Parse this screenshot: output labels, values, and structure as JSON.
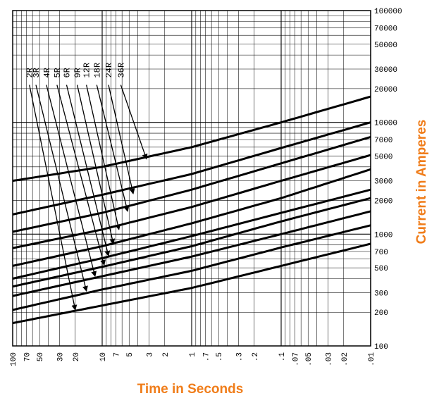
{
  "chart_data": {
    "type": "line",
    "xlabel": "Time in Seconds",
    "ylabel": "Current in Amperes",
    "x_scale": "log",
    "x_reversed": true,
    "y_scale": "log",
    "xlim": [
      100,
      0.01
    ],
    "ylim": [
      100,
      100000
    ],
    "x_tick_labels": [
      "100",
      "70",
      "50",
      "30",
      "20",
      "10",
      "7",
      "5",
      "3",
      "2",
      "1",
      ".7",
      ".5",
      ".3",
      ".2",
      ".1",
      ".07",
      ".05",
      ".03",
      ".02",
      ".01"
    ],
    "x_ticks": [
      100,
      70,
      50,
      30,
      20,
      10,
      7,
      5,
      3,
      2,
      1,
      0.7,
      0.5,
      0.3,
      0.2,
      0.1,
      0.07,
      0.05,
      0.03,
      0.02,
      0.01
    ],
    "y_tick_labels": [
      "100000",
      "70000",
      "50000",
      "30000",
      "20000",
      "10000",
      "7000",
      "5000",
      "3000",
      "2000",
      "1000",
      "700",
      "500",
      "300",
      "200",
      "100"
    ],
    "y_ticks": [
      100000,
      70000,
      50000,
      30000,
      20000,
      10000,
      7000,
      5000,
      3000,
      2000,
      1000,
      700,
      500,
      300,
      200,
      100
    ],
    "grid": true,
    "series": [
      {
        "name": "2R",
        "points": [
          [
            100,
            160
          ],
          [
            10,
            230
          ],
          [
            1,
            330
          ],
          [
            0.1,
            520
          ],
          [
            0.01,
            820
          ]
        ],
        "label_xy": [
          65,
          25000
        ],
        "arrow_xy": [
          20,
          210
        ]
      },
      {
        "name": "3R",
        "points": [
          [
            100,
            210
          ],
          [
            10,
            320
          ],
          [
            1,
            470
          ],
          [
            0.1,
            760
          ],
          [
            0.01,
            1200
          ]
        ],
        "label_xy": [
          55,
          25000
        ],
        "arrow_xy": [
          15,
          310
        ]
      },
      {
        "name": "4R",
        "points": [
          [
            100,
            280
          ],
          [
            10,
            420
          ],
          [
            1,
            630
          ],
          [
            0.1,
            1000
          ],
          [
            0.01,
            1600
          ]
        ],
        "label_xy": [
          42,
          25000
        ],
        "arrow_xy": [
          12,
          420
        ]
      },
      {
        "name": "5R",
        "points": [
          [
            100,
            340
          ],
          [
            10,
            510
          ],
          [
            1,
            780
          ],
          [
            0.1,
            1300
          ],
          [
            0.01,
            2100
          ]
        ],
        "label_xy": [
          32,
          25000
        ],
        "arrow_xy": [
          9.5,
          530
        ]
      },
      {
        "name": "6R",
        "points": [
          [
            100,
            400
          ],
          [
            10,
            610
          ],
          [
            1,
            960
          ],
          [
            0.1,
            1550
          ],
          [
            0.01,
            2500
          ]
        ],
        "label_xy": [
          25,
          25000
        ],
        "arrow_xy": [
          8.5,
          640
        ]
      },
      {
        "name": "9R",
        "points": [
          [
            100,
            520
          ],
          [
            10,
            780
          ],
          [
            1,
            1250
          ],
          [
            0.1,
            2100
          ],
          [
            0.01,
            3800
          ]
        ],
        "label_xy": [
          19,
          25000
        ],
        "arrow_xy": [
          7.5,
          820
        ]
      },
      {
        "name": "12R",
        "points": [
          [
            100,
            750
          ],
          [
            10,
            1100
          ],
          [
            1,
            1750
          ],
          [
            0.1,
            3000
          ],
          [
            0.01,
            5100
          ]
        ],
        "label_xy": [
          15,
          25000
        ],
        "arrow_xy": [
          6.5,
          1100
        ]
      },
      {
        "name": "18R",
        "points": [
          [
            100,
            1050
          ],
          [
            10,
            1550
          ],
          [
            1,
            2500
          ],
          [
            0.1,
            4300
          ],
          [
            0.01,
            7400
          ]
        ],
        "label_xy": [
          11.5,
          25000
        ],
        "arrow_xy": [
          5.2,
          1600
        ]
      },
      {
        "name": "24R",
        "points": [
          [
            100,
            1500
          ],
          [
            10,
            2250
          ],
          [
            1,
            3450
          ],
          [
            0.1,
            5900
          ],
          [
            0.01,
            10000
          ]
        ],
        "label_xy": [
          8.5,
          25000
        ],
        "arrow_xy": [
          4.5,
          2300
        ]
      },
      {
        "name": "36R",
        "points": [
          [
            100,
            3000
          ],
          [
            10,
            4000
          ],
          [
            1,
            6000
          ],
          [
            0.1,
            10000
          ],
          [
            0.01,
            17000
          ]
        ],
        "label_xy": [
          6.2,
          25000
        ],
        "arrow_xy": [
          3.2,
          4700
        ]
      }
    ]
  }
}
